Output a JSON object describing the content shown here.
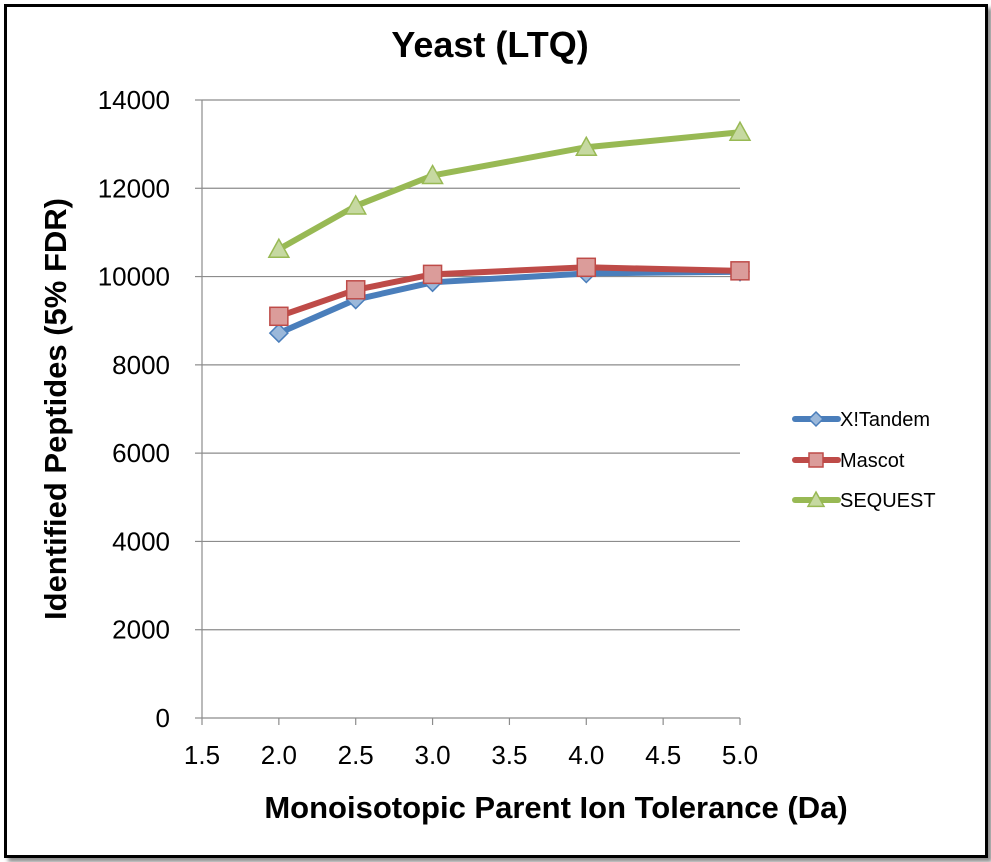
{
  "chart_data": {
    "type": "line",
    "title": "Yeast (LTQ)",
    "xlabel": "Monoisotopic Parent Ion Tolerance (Da)",
    "ylabel": "Identified Peptides (5% FDR)",
    "xlim": [
      1.5,
      5.0
    ],
    "ylim": [
      0,
      14000
    ],
    "xticks": [
      "1.5",
      "2.0",
      "2.5",
      "3.0",
      "3.5",
      "4.0",
      "4.5",
      "5.0"
    ],
    "yticks": [
      "0",
      "2000",
      "4000",
      "6000",
      "8000",
      "10000",
      "12000",
      "14000"
    ],
    "grid": "horizontal",
    "legend_position": "right",
    "series": [
      {
        "name": "X!Tandem",
        "color": "#4a7ebb",
        "marker": "diamond",
        "x": [
          2.0,
          2.5,
          3.0,
          4.0,
          5.0
        ],
        "values": [
          8720,
          9480,
          9870,
          10070,
          10110
        ]
      },
      {
        "name": "Mascot",
        "color": "#be4b48",
        "marker": "square",
        "x": [
          2.0,
          2.5,
          3.0,
          4.0,
          5.0
        ],
        "values": [
          9100,
          9700,
          10050,
          10210,
          10130
        ]
      },
      {
        "name": "SEQUEST",
        "color": "#98b954",
        "marker": "triangle",
        "x": [
          2.0,
          2.5,
          3.0,
          4.0,
          5.0
        ],
        "values": [
          10620,
          11600,
          12290,
          12930,
          13270
        ]
      }
    ]
  }
}
